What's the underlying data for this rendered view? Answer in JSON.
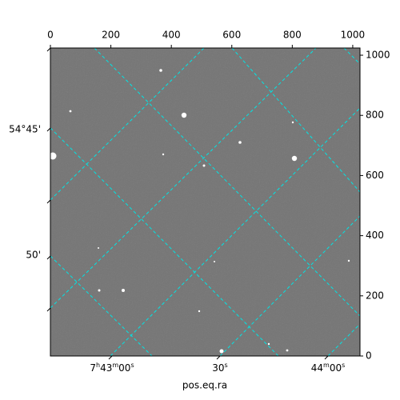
{
  "chart_data": {
    "type": "image",
    "xlabel": "pos.eq.ra",
    "xlim": [
      0,
      1024
    ],
    "ylim": [
      0,
      1024
    ],
    "xticks": [
      0,
      200,
      400,
      600,
      800,
      1000
    ],
    "yticks": [
      0,
      200,
      400,
      600,
      800,
      1000
    ],
    "ra_labels": [
      "7h43m00s",
      "30s",
      "44m00s"
    ],
    "dec_labels": [
      "54°45'",
      "50'"
    ],
    "grid_color": "#00e5e5"
  }
}
